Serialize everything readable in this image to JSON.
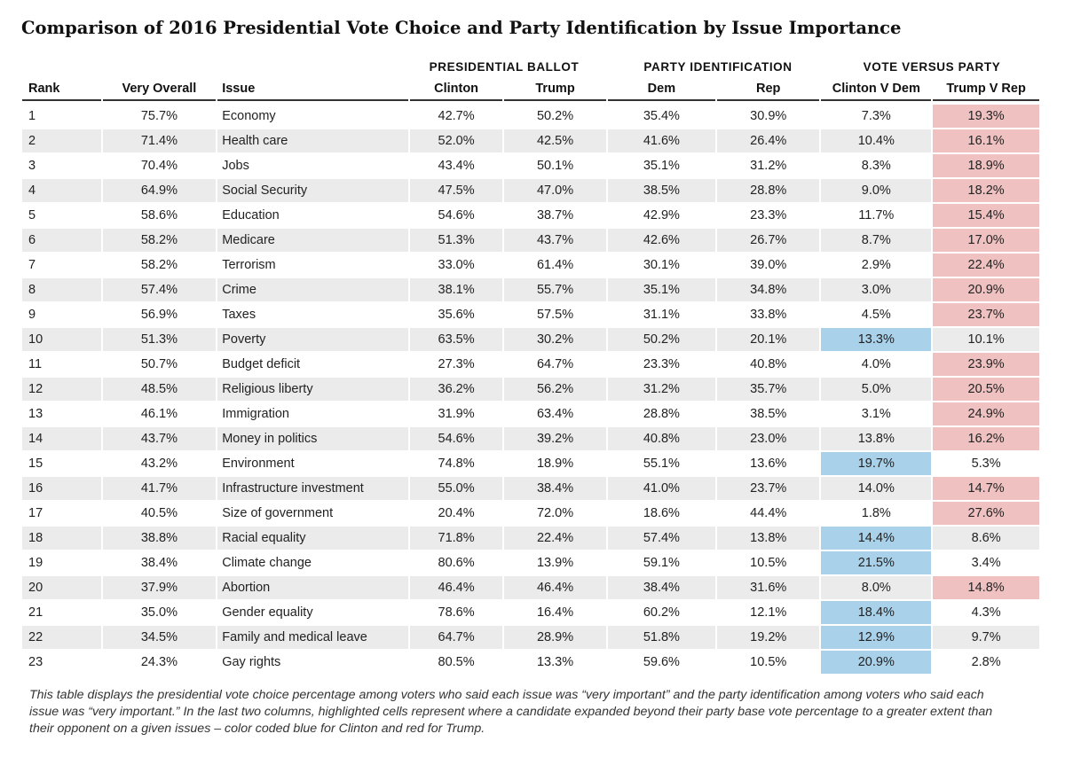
{
  "title": "Comparison of 2016 Presidential Vote Choice and Party Identification by Issue Importance",
  "group_headers": {
    "ballot": "PRESIDENTIAL BALLOT",
    "party": "PARTY IDENTIFICATION",
    "versus": "VOTE VERSUS PARTY"
  },
  "colors": {
    "highlight_clinton": "#a9d1ea",
    "highlight_trump": "#efc1c1",
    "stripe": "#ebebeb"
  },
  "chart_data": {
    "type": "table",
    "title": "Comparison of 2016 Presidential Vote Choice and Party Identification by Issue Importance",
    "columns": [
      "Rank",
      "Very Overall",
      "Issue",
      "Clinton",
      "Trump",
      "Dem",
      "Rep",
      "Clinton V Dem",
      "Trump V Rep"
    ],
    "rows": [
      {
        "rank": "1",
        "overall": "75.7%",
        "issue": "Economy",
        "clinton": "42.7%",
        "trump": "50.2%",
        "dem": "35.4%",
        "rep": "30.9%",
        "cvd": "7.3%",
        "tvr": "19.3%",
        "hl": "red"
      },
      {
        "rank": "2",
        "overall": "71.4%",
        "issue": "Health care",
        "clinton": "52.0%",
        "trump": "42.5%",
        "dem": "41.6%",
        "rep": "26.4%",
        "cvd": "10.4%",
        "tvr": "16.1%",
        "hl": "red"
      },
      {
        "rank": "3",
        "overall": "70.4%",
        "issue": "Jobs",
        "clinton": "43.4%",
        "trump": "50.1%",
        "dem": "35.1%",
        "rep": "31.2%",
        "cvd": "8.3%",
        "tvr": "18.9%",
        "hl": "red"
      },
      {
        "rank": "4",
        "overall": "64.9%",
        "issue": "Social Security",
        "clinton": "47.5%",
        "trump": "47.0%",
        "dem": "38.5%",
        "rep": "28.8%",
        "cvd": "9.0%",
        "tvr": "18.2%",
        "hl": "red"
      },
      {
        "rank": "5",
        "overall": "58.6%",
        "issue": "Education",
        "clinton": "54.6%",
        "trump": "38.7%",
        "dem": "42.9%",
        "rep": "23.3%",
        "cvd": "11.7%",
        "tvr": "15.4%",
        "hl": "red"
      },
      {
        "rank": "6",
        "overall": "58.2%",
        "issue": "Medicare",
        "clinton": "51.3%",
        "trump": "43.7%",
        "dem": "42.6%",
        "rep": "26.7%",
        "cvd": "8.7%",
        "tvr": "17.0%",
        "hl": "red"
      },
      {
        "rank": "7",
        "overall": "58.2%",
        "issue": "Terrorism",
        "clinton": "33.0%",
        "trump": "61.4%",
        "dem": "30.1%",
        "rep": "39.0%",
        "cvd": "2.9%",
        "tvr": "22.4%",
        "hl": "red"
      },
      {
        "rank": "8",
        "overall": "57.4%",
        "issue": "Crime",
        "clinton": "38.1%",
        "trump": "55.7%",
        "dem": "35.1%",
        "rep": "34.8%",
        "cvd": "3.0%",
        "tvr": "20.9%",
        "hl": "red"
      },
      {
        "rank": "9",
        "overall": "56.9%",
        "issue": "Taxes",
        "clinton": "35.6%",
        "trump": "57.5%",
        "dem": "31.1%",
        "rep": "33.8%",
        "cvd": "4.5%",
        "tvr": "23.7%",
        "hl": "red"
      },
      {
        "rank": "10",
        "overall": "51.3%",
        "issue": "Poverty",
        "clinton": "63.5%",
        "trump": "30.2%",
        "dem": "50.2%",
        "rep": "20.1%",
        "cvd": "13.3%",
        "tvr": "10.1%",
        "hl": "blue"
      },
      {
        "rank": "11",
        "overall": "50.7%",
        "issue": "Budget deficit",
        "clinton": "27.3%",
        "trump": "64.7%",
        "dem": "23.3%",
        "rep": "40.8%",
        "cvd": "4.0%",
        "tvr": "23.9%",
        "hl": "red"
      },
      {
        "rank": "12",
        "overall": "48.5%",
        "issue": "Religious liberty",
        "clinton": "36.2%",
        "trump": "56.2%",
        "dem": "31.2%",
        "rep": "35.7%",
        "cvd": "5.0%",
        "tvr": "20.5%",
        "hl": "red"
      },
      {
        "rank": "13",
        "overall": "46.1%",
        "issue": "Immigration",
        "clinton": "31.9%",
        "trump": "63.4%",
        "dem": "28.8%",
        "rep": "38.5%",
        "cvd": "3.1%",
        "tvr": "24.9%",
        "hl": "red"
      },
      {
        "rank": "14",
        "overall": "43.7%",
        "issue": "Money in politics",
        "clinton": "54.6%",
        "trump": "39.2%",
        "dem": "40.8%",
        "rep": "23.0%",
        "cvd": "13.8%",
        "tvr": "16.2%",
        "hl": "red"
      },
      {
        "rank": "15",
        "overall": "43.2%",
        "issue": "Environment",
        "clinton": "74.8%",
        "trump": "18.9%",
        "dem": "55.1%",
        "rep": "13.6%",
        "cvd": "19.7%",
        "tvr": "5.3%",
        "hl": "blue"
      },
      {
        "rank": "16",
        "overall": "41.7%",
        "issue": "Infrastructure investment",
        "clinton": "55.0%",
        "trump": "38.4%",
        "dem": "41.0%",
        "rep": "23.7%",
        "cvd": "14.0%",
        "tvr": "14.7%",
        "hl": "red"
      },
      {
        "rank": "17",
        "overall": "40.5%",
        "issue": "Size of government",
        "clinton": "20.4%",
        "trump": "72.0%",
        "dem": "18.6%",
        "rep": "44.4%",
        "cvd": "1.8%",
        "tvr": "27.6%",
        "hl": "red"
      },
      {
        "rank": "18",
        "overall": "38.8%",
        "issue": "Racial equality",
        "clinton": "71.8%",
        "trump": "22.4%",
        "dem": "57.4%",
        "rep": "13.8%",
        "cvd": "14.4%",
        "tvr": "8.6%",
        "hl": "blue"
      },
      {
        "rank": "19",
        "overall": "38.4%",
        "issue": "Climate change",
        "clinton": "80.6%",
        "trump": "13.9%",
        "dem": "59.1%",
        "rep": "10.5%",
        "cvd": "21.5%",
        "tvr": "3.4%",
        "hl": "blue"
      },
      {
        "rank": "20",
        "overall": "37.9%",
        "issue": "Abortion",
        "clinton": "46.4%",
        "trump": "46.4%",
        "dem": "38.4%",
        "rep": "31.6%",
        "cvd": "8.0%",
        "tvr": "14.8%",
        "hl": "red"
      },
      {
        "rank": "21",
        "overall": "35.0%",
        "issue": "Gender equality",
        "clinton": "78.6%",
        "trump": "16.4%",
        "dem": "60.2%",
        "rep": "12.1%",
        "cvd": "18.4%",
        "tvr": "4.3%",
        "hl": "blue"
      },
      {
        "rank": "22",
        "overall": "34.5%",
        "issue": "Family and medical leave",
        "clinton": "64.7%",
        "trump": "28.9%",
        "dem": "51.8%",
        "rep": "19.2%",
        "cvd": "12.9%",
        "tvr": "9.7%",
        "hl": "blue"
      },
      {
        "rank": "23",
        "overall": "24.3%",
        "issue": "Gay rights",
        "clinton": "80.5%",
        "trump": "13.3%",
        "dem": "59.6%",
        "rep": "10.5%",
        "cvd": "20.9%",
        "tvr": "2.8%",
        "hl": "blue"
      }
    ]
  },
  "footnote": "This table displays the presidential vote choice percentage among voters who said each issue was “very important” and the party identification among voters who said each issue was “very important.” In the last two columns, highlighted cells represent where a candidate expanded beyond their party base vote percentage to a greater extent than their opponent on a given issues – color coded blue for Clinton and red for Trump."
}
